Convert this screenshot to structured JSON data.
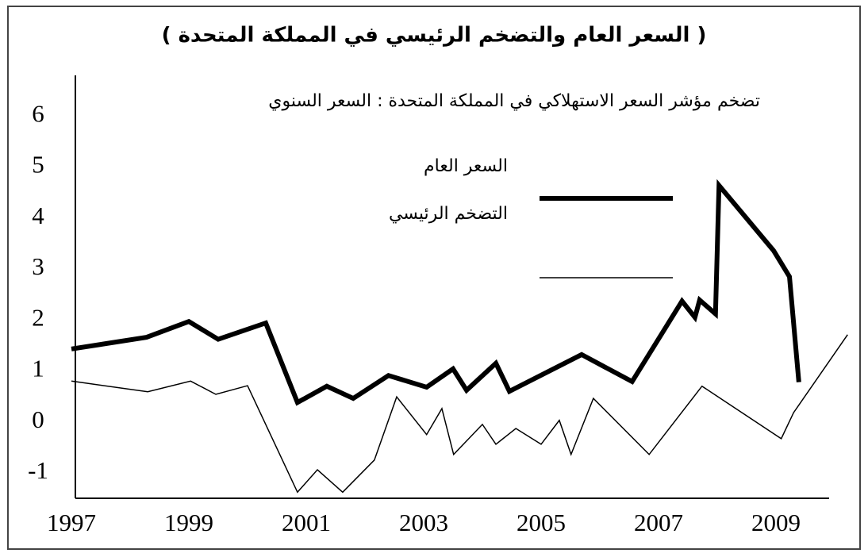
{
  "chart_data": {
    "type": "line",
    "title": "( السعر العام والتضخم الرئيسي في المملكة المتحدة )",
    "subtitle": "تضخم مؤشر السعر الاستهلاكي في المملكة المتحدة : السعر السنوي",
    "xlim": [
      1997,
      2010.3
    ],
    "xticks": [
      1997,
      1999,
      2001,
      2003,
      2005,
      2007,
      2009
    ],
    "ylim": [
      -1.5,
      6.8
    ],
    "yticks": [
      6,
      5,
      4,
      3,
      2,
      1,
      0,
      -1
    ],
    "grid": false,
    "series": [
      {
        "name": "السعر العام",
        "color": "#000000",
        "x": [
          1997,
          1998.28,
          1999.0,
          1999.5,
          2000.31,
          2000.85,
          2001.35,
          2001.8,
          2002.4,
          2003.05,
          2003.5,
          2003.73,
          2004.23,
          2004.46,
          2005.69,
          2006.55,
          2007.4,
          2007.62,
          2007.7,
          2007.97,
          2008.03,
          2008.96,
          2009.23,
          2009.39
        ],
        "values": [
          1.43,
          1.66,
          1.97,
          1.62,
          1.94,
          0.38,
          0.7,
          0.46,
          0.91,
          0.68,
          1.04,
          0.62,
          1.15,
          0.6,
          1.32,
          0.79,
          2.37,
          2.05,
          2.39,
          2.12,
          4.64,
          3.36,
          2.85,
          0.78
        ]
      },
      {
        "name": "التضخم الرئيسي",
        "color": "#000000",
        "x": [
          1997.0,
          1998.3,
          1999.03,
          1999.46,
          2000.0,
          2000.85,
          2001.19,
          2001.62,
          2002.16,
          2002.54,
          2003.05,
          2003.31,
          2003.51,
          2004.0,
          2004.23,
          2004.57,
          2005.0,
          2005.31,
          2005.51,
          2005.89,
          2006.84,
          2007.74,
          2009.09,
          2009.3,
          2010.22
        ],
        "values": [
          0.8,
          0.59,
          0.8,
          0.54,
          0.71,
          -1.38,
          -0.94,
          -1.38,
          -0.75,
          0.49,
          -0.25,
          0.26,
          -0.64,
          -0.05,
          -0.44,
          -0.13,
          -0.44,
          0.03,
          -0.64,
          0.46,
          -0.64,
          0.7,
          -0.33,
          0.18,
          1.71
        ]
      }
    ]
  }
}
